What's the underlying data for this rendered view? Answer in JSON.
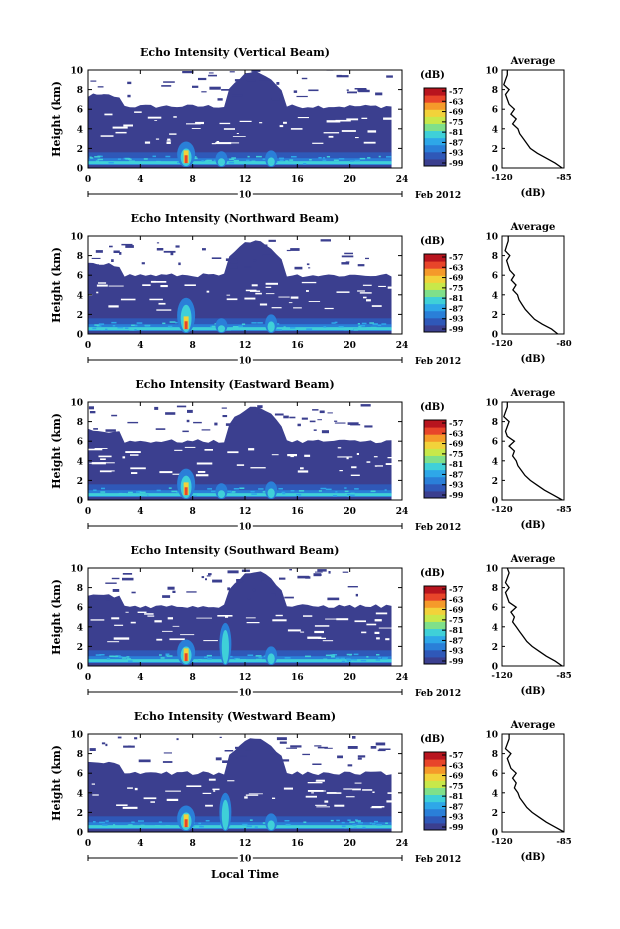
{
  "figure": {
    "xaxis_title": "Local Time",
    "date_label": "Feb 2012",
    "day_label": "10",
    "colorbar_unit": "(dB)",
    "average_title": "Average",
    "average_xlabel": "(dB)",
    "ylabel": "Height (km)"
  },
  "colors": {
    "background": "#ffffff",
    "low_echo": "#3b3f8f",
    "colormap": [
      "#3b3f8f",
      "#2f58b8",
      "#2a7fd8",
      "#2ea7e8",
      "#3fd0d8",
      "#7fe08a",
      "#c8e84a",
      "#f2d23a",
      "#f59a2a",
      "#e8452a",
      "#b8141e"
    ]
  },
  "chart_data": [
    {
      "type": "heatmap",
      "title": "Echo Intensity (Vertical Beam)",
      "ylabel": "Height (km)",
      "xlabel": "",
      "x_ticks": [
        0,
        4,
        8,
        12,
        16,
        20,
        24
      ],
      "y_ticks": [
        0,
        2,
        4,
        6,
        8,
        10
      ],
      "xlim": [
        0,
        24
      ],
      "ylim": [
        0,
        10
      ],
      "colorbar": {
        "label": "(dB)",
        "ticks": [
          -57,
          -63,
          -69,
          -75,
          -81,
          -87,
          -93,
          -99
        ]
      },
      "dominant_echo_top_km": 6.3,
      "convective_cells": [
        {
          "time": 7.5,
          "height_km": 2.5,
          "dB": -57
        },
        {
          "time": 10.2,
          "height_km": 1.5,
          "dB": -85
        },
        {
          "time": 14.0,
          "height_km": 1.6,
          "dB": -85
        }
      ],
      "average_profile": {
        "title": "Average",
        "xlabel": "(dB)",
        "x_ticks": [
          -120,
          -85
        ],
        "xlim": [
          -120,
          -85
        ],
        "height_km": [
          0,
          0.5,
          1,
          1.5,
          2,
          2.5,
          3,
          3.5,
          4,
          4.5,
          5,
          5.5,
          6,
          6.5,
          7,
          7.5,
          8,
          8.5,
          9,
          9.5,
          10
        ],
        "dB": [
          -86,
          -90,
          -95,
          -100,
          -104,
          -106,
          -108,
          -110,
          -111,
          -114,
          -112,
          -115,
          -113,
          -116,
          -117,
          -118,
          -116,
          -119,
          -118,
          -117,
          -117
        ]
      }
    },
    {
      "type": "heatmap",
      "title": "Echo Intensity (Northward Beam)",
      "ylabel": "Height (km)",
      "xlabel": "",
      "x_ticks": [
        0,
        4,
        8,
        12,
        16,
        20,
        24
      ],
      "y_ticks": [
        0,
        2,
        4,
        6,
        8,
        10
      ],
      "xlim": [
        0,
        24
      ],
      "ylim": [
        0,
        10
      ],
      "colorbar": {
        "label": "(dB)",
        "ticks": [
          -57,
          -63,
          -69,
          -75,
          -81,
          -87,
          -93,
          -99
        ]
      },
      "dominant_echo_top_km": 6.0,
      "convective_cells": [
        {
          "time": 7.5,
          "height_km": 3.5,
          "dB": -57
        },
        {
          "time": 10.2,
          "height_km": 1.4,
          "dB": -85
        },
        {
          "time": 14.0,
          "height_km": 1.8,
          "dB": -85
        }
      ],
      "average_profile": {
        "title": "Average",
        "xlabel": "(dB)",
        "x_ticks": [
          -120,
          -80
        ],
        "xlim": [
          -120,
          -80
        ],
        "height_km": [
          0,
          0.5,
          1,
          1.5,
          2,
          2.5,
          3,
          3.5,
          4,
          4.5,
          5,
          5.5,
          6,
          6.5,
          7,
          7.5,
          8,
          8.5,
          9,
          9.5,
          10
        ],
        "dB": [
          -84,
          -88,
          -94,
          -99,
          -102,
          -105,
          -107,
          -109,
          -110,
          -113,
          -111,
          -114,
          -112,
          -115,
          -116,
          -117,
          -115,
          -118,
          -117,
          -116,
          -116
        ]
      }
    },
    {
      "type": "heatmap",
      "title": "Echo Intensity (Eastward Beam)",
      "ylabel": "Height (km)",
      "xlabel": "",
      "x_ticks": [
        0,
        4,
        8,
        12,
        16,
        20,
        24
      ],
      "y_ticks": [
        0,
        2,
        4,
        6,
        8,
        10
      ],
      "xlim": [
        0,
        24
      ],
      "ylim": [
        0,
        10
      ],
      "colorbar": {
        "label": "(dB)",
        "ticks": [
          -57,
          -63,
          -69,
          -75,
          -81,
          -87,
          -93,
          -99
        ]
      },
      "dominant_echo_top_km": 6.0,
      "convective_cells": [
        {
          "time": 7.5,
          "height_km": 3.0,
          "dB": -57
        },
        {
          "time": 10.2,
          "height_km": 1.5,
          "dB": -85
        },
        {
          "time": 14.0,
          "height_km": 1.7,
          "dB": -85
        }
      ],
      "average_profile": {
        "title": "Average",
        "xlabel": "(dB)",
        "x_ticks": [
          -120,
          -85
        ],
        "xlim": [
          -120,
          -85
        ],
        "height_km": [
          0,
          0.5,
          1,
          1.5,
          2,
          2.5,
          3,
          3.5,
          4,
          4.5,
          5,
          5.5,
          6,
          6.5,
          7,
          7.5,
          8,
          8.5,
          9,
          9.5,
          10
        ],
        "dB": [
          -86,
          -91,
          -96,
          -100,
          -104,
          -107,
          -109,
          -111,
          -112,
          -114,
          -113,
          -116,
          -113,
          -117,
          -118,
          -117,
          -116,
          -119,
          -118,
          -117,
          -117
        ]
      }
    },
    {
      "type": "heatmap",
      "title": "Echo Intensity (Southward Beam)",
      "ylabel": "Height (km)",
      "xlabel": "",
      "x_ticks": [
        0,
        4,
        8,
        12,
        16,
        20,
        24
      ],
      "y_ticks": [
        0,
        2,
        4,
        6,
        8,
        10
      ],
      "xlim": [
        0,
        24
      ],
      "ylim": [
        0,
        10
      ],
      "colorbar": {
        "label": "(dB)",
        "ticks": [
          -57,
          -63,
          -69,
          -75,
          -81,
          -87,
          -93,
          -99
        ]
      },
      "dominant_echo_top_km": 6.1,
      "convective_cells": [
        {
          "time": 7.5,
          "height_km": 2.5,
          "dB": -57
        },
        {
          "time": 10.5,
          "height_km": 4.2,
          "dB": -80
        },
        {
          "time": 14.0,
          "height_km": 1.8,
          "dB": -85
        }
      ],
      "average_profile": {
        "title": "Average",
        "xlabel": "(dB)",
        "x_ticks": [
          -120,
          -85
        ],
        "xlim": [
          -120,
          -85
        ],
        "height_km": [
          0,
          0.5,
          1,
          1.5,
          2,
          2.5,
          3,
          3.5,
          4,
          4.5,
          5,
          5.5,
          6,
          6.5,
          7,
          7.5,
          8,
          8.5,
          9,
          9.5,
          10
        ],
        "dB": [
          -86,
          -90,
          -95,
          -99,
          -103,
          -106,
          -108,
          -110,
          -112,
          -114,
          -113,
          -115,
          -112,
          -116,
          -117,
          -118,
          -116,
          -118,
          -117,
          -116,
          -117
        ]
      }
    },
    {
      "type": "heatmap",
      "title": "Echo Intensity (Westward Beam)",
      "ylabel": "Height (km)",
      "xlabel": "Local Time",
      "x_ticks": [
        0,
        4,
        8,
        12,
        16,
        20,
        24
      ],
      "y_ticks": [
        0,
        2,
        4,
        6,
        8,
        10
      ],
      "xlim": [
        0,
        24
      ],
      "ylim": [
        0,
        10
      ],
      "colorbar": {
        "label": "(dB)",
        "ticks": [
          -57,
          -63,
          -69,
          -75,
          -81,
          -87,
          -93,
          -99
        ]
      },
      "dominant_echo_top_km": 6.0,
      "convective_cells": [
        {
          "time": 7.5,
          "height_km": 2.5,
          "dB": -57
        },
        {
          "time": 10.5,
          "height_km": 3.8,
          "dB": -80
        },
        {
          "time": 14.0,
          "height_km": 1.7,
          "dB": -85
        }
      ],
      "average_profile": {
        "title": "Average",
        "xlabel": "(dB)",
        "x_ticks": [
          -120,
          -85
        ],
        "xlim": [
          -120,
          -85
        ],
        "height_km": [
          0,
          0.5,
          1,
          1.5,
          2,
          2.5,
          3,
          3.5,
          4,
          4.5,
          5,
          5.5,
          6,
          6.5,
          7,
          7.5,
          8,
          8.5,
          9,
          9.5,
          10
        ],
        "dB": [
          -85,
          -90,
          -95,
          -99,
          -103,
          -106,
          -108,
          -110,
          -111,
          -113,
          -112,
          -114,
          -112,
          -115,
          -116,
          -117,
          -115,
          -118,
          -117,
          -116,
          -116
        ]
      }
    }
  ]
}
